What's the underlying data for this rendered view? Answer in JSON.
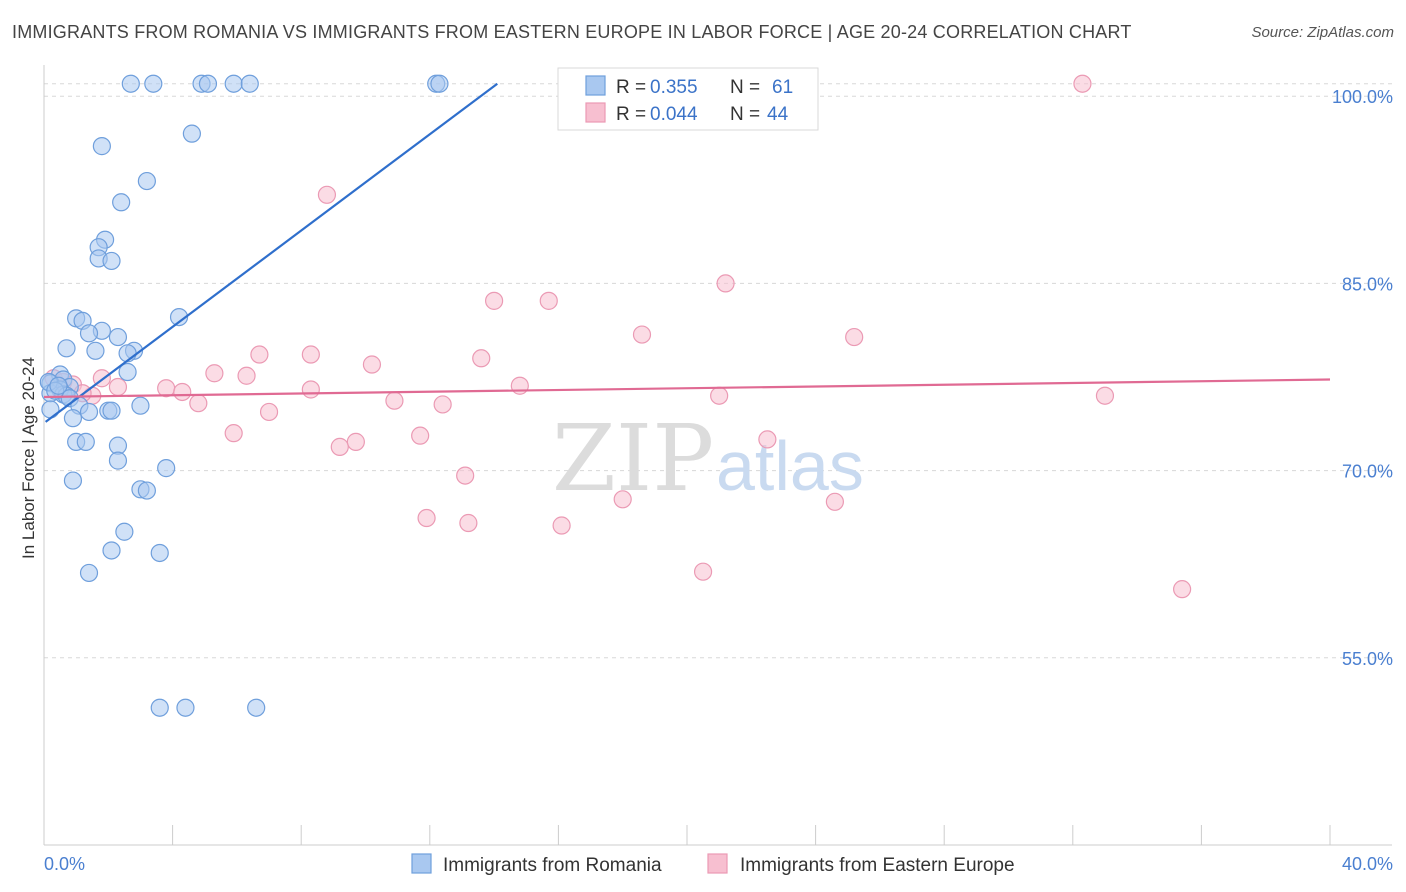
{
  "title": "IMMIGRANTS FROM ROMANIA VS IMMIGRANTS FROM EASTERN EUROPE IN LABOR FORCE | AGE 20-24 CORRELATION CHART",
  "source": "Source: ZipAtlas.com",
  "watermark": {
    "zip": "ZIP",
    "atlas": "atlas"
  },
  "legend": {
    "r_label": "R =",
    "n_label": "N =",
    "romania": {
      "r": "0.355",
      "n": "61"
    },
    "eastern_europe": {
      "r": "0.044",
      "n": "44"
    }
  },
  "colors": {
    "romania_fill": "#a9c8f0",
    "romania_stroke": "#6f9fdc",
    "romania_line": "#2f6fcc",
    "ee_fill": "#f7bfd0",
    "ee_stroke": "#eb9ab4",
    "ee_line": "#e06a93",
    "grid": "#d8d8d8",
    "tick_text": "#4a7fd0"
  },
  "chart_data": {
    "type": "scatter",
    "xlabel": "",
    "ylabel": "In Labor Force | Age 20-24",
    "xlim": [
      0,
      40
    ],
    "ylim": [
      40,
      102.5
    ],
    "x_tick_labels": [
      {
        "value": 0,
        "label": "0.0%"
      },
      {
        "value": 40,
        "label": "40.0%"
      }
    ],
    "y_tick_labels": [
      {
        "value": 100,
        "label": "100.0%"
      },
      {
        "value": 85,
        "label": "85.0%"
      },
      {
        "value": 70,
        "label": "70.0%"
      },
      {
        "value": 55,
        "label": "55.0%"
      }
    ],
    "grid": true,
    "legend_position": "top-center",
    "series": [
      {
        "name": "Immigrants from Romania",
        "trend": {
          "x": [
            0.05,
            14.1
          ],
          "y": [
            73.9,
            101.0
          ]
        },
        "points": [
          [
            2.7,
            101.0
          ],
          [
            3.4,
            101.0
          ],
          [
            4.9,
            101.0
          ],
          [
            5.1,
            101.0
          ],
          [
            5.9,
            101.0
          ],
          [
            6.4,
            101.0
          ],
          [
            12.2,
            101.0
          ],
          [
            12.3,
            101.0
          ],
          [
            4.6,
            97.0
          ],
          [
            1.8,
            96.0
          ],
          [
            3.2,
            93.2
          ],
          [
            2.4,
            91.5
          ],
          [
            1.9,
            88.5
          ],
          [
            1.7,
            87.9
          ],
          [
            1.7,
            87.0
          ],
          [
            2.1,
            86.8
          ],
          [
            1.0,
            82.2
          ],
          [
            1.2,
            82.0
          ],
          [
            4.2,
            82.3
          ],
          [
            1.8,
            81.2
          ],
          [
            1.4,
            81.0
          ],
          [
            2.3,
            80.7
          ],
          [
            0.7,
            79.8
          ],
          [
            1.6,
            79.6
          ],
          [
            2.8,
            79.6
          ],
          [
            2.6,
            79.4
          ],
          [
            2.6,
            77.9
          ],
          [
            0.5,
            77.7
          ],
          [
            0.6,
            77.3
          ],
          [
            0.2,
            77.0
          ],
          [
            0.8,
            76.7
          ],
          [
            0.5,
            76.5
          ],
          [
            0.2,
            76.2
          ],
          [
            0.6,
            76.1
          ],
          [
            0.7,
            76.0
          ],
          [
            0.8,
            75.8
          ],
          [
            1.1,
            75.2
          ],
          [
            0.2,
            74.9
          ],
          [
            1.4,
            74.7
          ],
          [
            2.0,
            74.8
          ],
          [
            2.1,
            74.8
          ],
          [
            3.0,
            75.2
          ],
          [
            0.9,
            74.2
          ],
          [
            1.0,
            72.3
          ],
          [
            1.3,
            72.3
          ],
          [
            2.3,
            72.0
          ],
          [
            2.3,
            70.8
          ],
          [
            3.8,
            70.2
          ],
          [
            0.9,
            69.2
          ],
          [
            3.0,
            68.5
          ],
          [
            3.2,
            68.4
          ],
          [
            2.5,
            65.1
          ],
          [
            2.1,
            63.6
          ],
          [
            3.6,
            63.4
          ],
          [
            1.4,
            61.8
          ],
          [
            3.6,
            51.0
          ],
          [
            4.4,
            51.0
          ],
          [
            6.6,
            51.0
          ],
          [
            0.15,
            77.1
          ],
          [
            0.35,
            76.4
          ],
          [
            0.45,
            76.8
          ]
        ]
      },
      {
        "name": "Immigrants from Eastern Europe",
        "trend": {
          "x": [
            0.0,
            40.0
          ],
          "y": [
            75.9,
            77.3
          ]
        },
        "points": [
          [
            32.3,
            101.0
          ],
          [
            8.8,
            92.1
          ],
          [
            21.2,
            85.0
          ],
          [
            14.0,
            83.6
          ],
          [
            15.7,
            83.6
          ],
          [
            18.6,
            80.9
          ],
          [
            25.2,
            80.7
          ],
          [
            6.7,
            79.3
          ],
          [
            8.3,
            79.3
          ],
          [
            13.6,
            79.0
          ],
          [
            10.2,
            78.5
          ],
          [
            5.3,
            77.8
          ],
          [
            6.3,
            77.6
          ],
          [
            1.8,
            77.4
          ],
          [
            2.3,
            76.7
          ],
          [
            3.8,
            76.6
          ],
          [
            4.3,
            76.3
          ],
          [
            8.3,
            76.5
          ],
          [
            14.8,
            76.8
          ],
          [
            1.5,
            76.0
          ],
          [
            10.9,
            75.6
          ],
          [
            4.8,
            75.4
          ],
          [
            12.4,
            75.3
          ],
          [
            21.0,
            76.0
          ],
          [
            33.0,
            76.0
          ],
          [
            7.0,
            74.7
          ],
          [
            5.9,
            73.0
          ],
          [
            11.7,
            72.8
          ],
          [
            9.7,
            72.3
          ],
          [
            9.2,
            71.9
          ],
          [
            22.5,
            72.5
          ],
          [
            13.1,
            69.6
          ],
          [
            18.0,
            67.7
          ],
          [
            24.6,
            67.5
          ],
          [
            11.9,
            66.2
          ],
          [
            13.2,
            65.8
          ],
          [
            16.1,
            65.6
          ],
          [
            20.5,
            61.9
          ],
          [
            35.4,
            60.5
          ],
          [
            0.3,
            77.4
          ],
          [
            0.6,
            77.1
          ],
          [
            0.9,
            76.9
          ],
          [
            0.5,
            76.6
          ],
          [
            1.2,
            76.2
          ]
        ]
      }
    ]
  },
  "bottom_legend": [
    "Immigrants from Romania",
    "Immigrants from Eastern Europe"
  ]
}
